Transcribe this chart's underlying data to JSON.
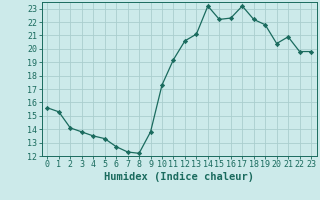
{
  "x": [
    0,
    1,
    2,
    3,
    4,
    5,
    6,
    7,
    8,
    9,
    10,
    11,
    12,
    13,
    14,
    15,
    16,
    17,
    18,
    19,
    20,
    21,
    22,
    23
  ],
  "y": [
    15.6,
    15.3,
    14.1,
    13.8,
    13.5,
    13.3,
    12.7,
    12.3,
    12.2,
    13.8,
    17.3,
    19.2,
    20.6,
    21.1,
    23.2,
    22.2,
    22.3,
    23.2,
    22.2,
    21.8,
    20.4,
    20.9,
    19.8,
    19.8
  ],
  "line_color": "#1a6b5e",
  "marker": "D",
  "marker_size": 2.2,
  "bg_color": "#cceaea",
  "grid_color": "#aacece",
  "xlabel": "Humidex (Indice chaleur)",
  "ylim": [
    12,
    23.5
  ],
  "xlim": [
    -0.5,
    23.5
  ],
  "yticks": [
    12,
    13,
    14,
    15,
    16,
    17,
    18,
    19,
    20,
    21,
    22,
    23
  ],
  "xticks": [
    0,
    1,
    2,
    3,
    4,
    5,
    6,
    7,
    8,
    9,
    10,
    11,
    12,
    13,
    14,
    15,
    16,
    17,
    18,
    19,
    20,
    21,
    22,
    23
  ],
  "tick_label_fontsize": 6.0,
  "xlabel_fontsize": 7.5,
  "linewidth": 0.9
}
